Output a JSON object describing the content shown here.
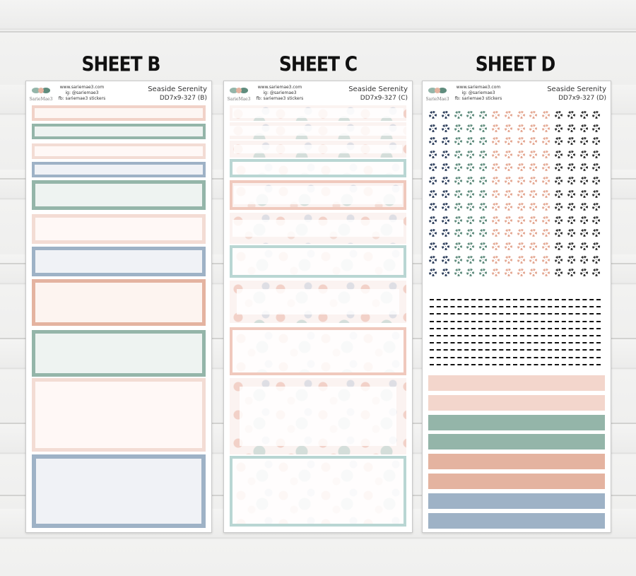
{
  "sheets": [
    {
      "title": "SHEET B",
      "shop_lines": [
        "www.sariemae3.com",
        "ig: @sariemae3",
        "fb: sariemae3 stickers"
      ],
      "kit_name": "Seaside Serenity",
      "code": "DD7x9-327 (B)"
    },
    {
      "title": "SHEET C",
      "shop_lines": [
        "www.sariemae3.com",
        "ig: @sariemae3",
        "fb: sariemae3 stickers"
      ],
      "kit_name": "Seaside Serenity",
      "code": "DD7x9-327 (C)"
    },
    {
      "title": "SHEET D",
      "shop_lines": [
        "www.sariemae3.com",
        "ig: @sariemae3",
        "fb: sariemae3 stickers"
      ],
      "kit_name": "Seaside Serenity",
      "code": "DD7x9-327 (D)"
    }
  ],
  "logo_text": "SarieMae3",
  "colors": {
    "peach": "#f3d6cc",
    "sage": "#94b5a9",
    "blue": "#9eb2c6",
    "coral": "#e4b3a0",
    "navy": "#2e3f5c",
    "dark_sage": "#5f8c7d"
  },
  "sheet_b_boxes": [
    {
      "border": "#f1d2c8",
      "fill": "#fdf6f3"
    },
    {
      "border": "#94b5a9",
      "fill": "#eef3f1"
    },
    {
      "border": "#f3dcd4",
      "fill": "#fff8f6"
    },
    {
      "border": "#9eb2c6",
      "fill": "#f0f2f6"
    },
    {
      "border": "#94b5a9",
      "fill": "#eef3f1"
    },
    {
      "border": "#f3dcd4",
      "fill": "#fff8f6"
    },
    {
      "border": "#9eb2c6",
      "fill": "#f0f2f6"
    },
    {
      "border": "#e4b3a0",
      "fill": "#fdf4f0"
    },
    {
      "border": "#94b5a9",
      "fill": "#eef3f1"
    },
    {
      "border": "#f3dcd4",
      "fill": "#fff8f6"
    },
    {
      "border": "#9eb2c6",
      "fill": "#f0f2f6"
    }
  ],
  "sheet_d_icon_colors": [
    "#2e3f5c",
    "#5f8c7d",
    "#e4a893",
    "#333333"
  ],
  "sheet_d_strip_colors": [
    "#f3d6cc",
    "#f3d6cc",
    "#94b5a9",
    "#94b5a9",
    "#e4b3a0",
    "#e4b3a0",
    "#9eb2c6",
    "#9eb2c6"
  ]
}
